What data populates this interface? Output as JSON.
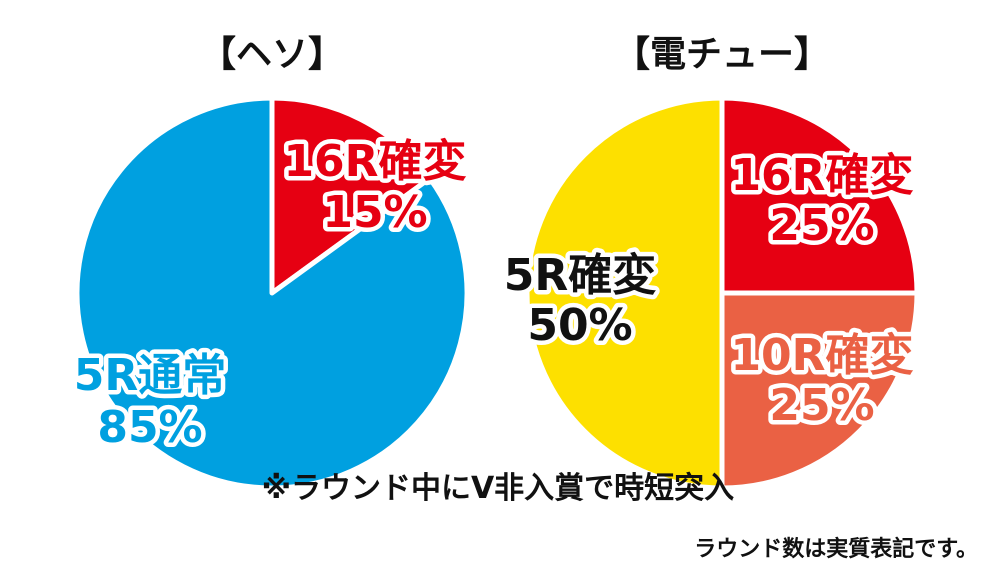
{
  "chart_data": [
    {
      "type": "pie",
      "title": "【ヘソ】",
      "slices": [
        {
          "name": "16R確変",
          "value": 15,
          "value_label": "15%",
          "color": "#e60012",
          "text_color": "#e60012"
        },
        {
          "name": "5R通常",
          "value": 85,
          "value_label": "85%",
          "color": "#00a0e0",
          "text_color": "#00a0e0"
        }
      ]
    },
    {
      "type": "pie",
      "title": "【電チュー】",
      "slices": [
        {
          "name": "16R確変",
          "value": 25,
          "value_label": "25%",
          "color": "#e60012",
          "text_color": "#e60012"
        },
        {
          "name": "10R確変",
          "value": 25,
          "value_label": "25%",
          "color": "#ea6144",
          "text_color": "#ea6144"
        },
        {
          "name": "5R確変",
          "value": 50,
          "value_label": "50%",
          "color": "#fde000",
          "text_color": "#111111"
        }
      ]
    }
  ],
  "note": "※ラウンド中にV非入賞で時短突入",
  "footnote": "ラウンド数は実質表記です。"
}
